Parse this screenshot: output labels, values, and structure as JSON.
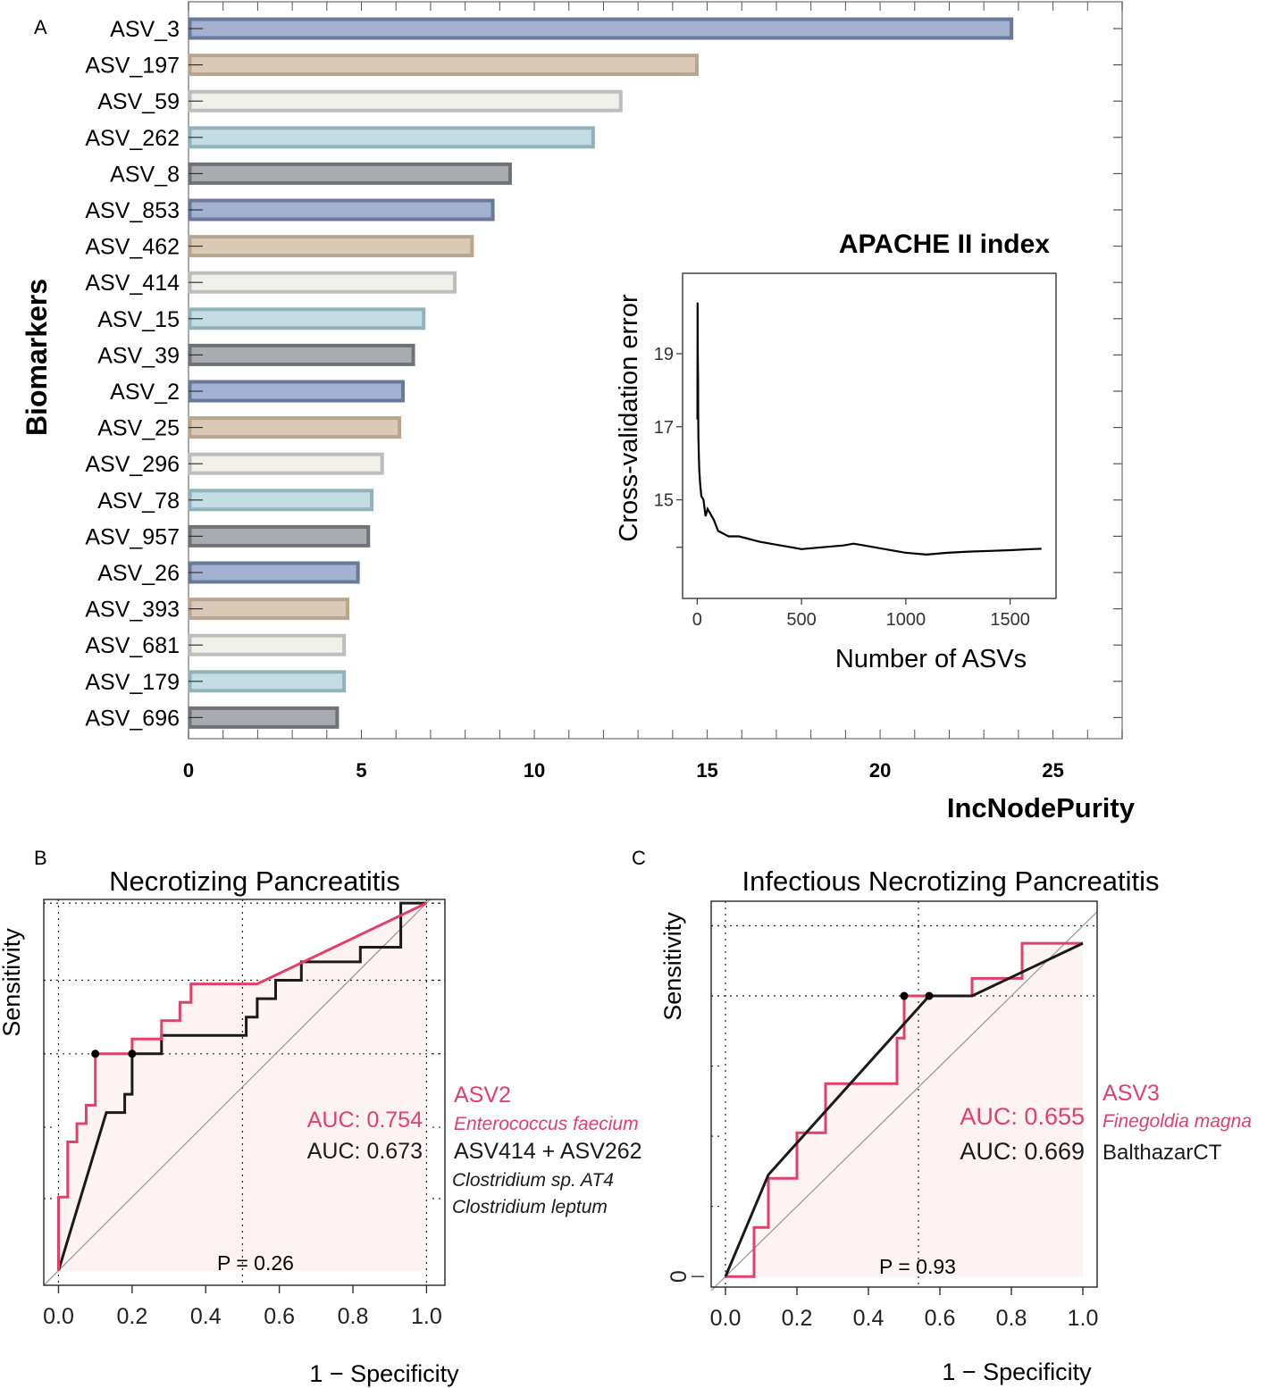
{
  "panel_labels": {
    "a": "A",
    "b": "B",
    "c": "C"
  },
  "colors": {
    "blue": "#a3b2d1",
    "blue_edge": "#6a789a",
    "tan": "#d9cab7",
    "tan_edge": "#b8a58d",
    "white": "#f1efea",
    "white_edge": "#bdbdbd",
    "cyan": "#c4dde2",
    "cyan_edge": "#92b2ba",
    "gray": "#a9abb1",
    "gray_edge": "#6f7277",
    "roc_red": "#e2406b",
    "roc_black": "#1a1a1a",
    "roc_fill": "#fdf3f2",
    "diag": "#9a9a9a"
  },
  "chart_data": [
    {
      "id": "importance",
      "type": "bar",
      "orientation": "horizontal",
      "xlabel": "IncNodePurity",
      "ylabel": "Biomarkers",
      "xlim": [
        0,
        27
      ],
      "xticks": [
        0,
        5,
        10,
        15,
        20,
        25
      ],
      "xtick_labels": [
        "0",
        "5",
        "10",
        "15",
        "20",
        "25"
      ],
      "categories": [
        "ASV_3",
        "ASV_197",
        "ASV_59",
        "ASV_262",
        "ASV_8",
        "ASV_853",
        "ASV_462",
        "ASV_414",
        "ASV_15",
        "ASV_39",
        "ASV_2",
        "ASV_25",
        "ASV_296",
        "ASV_78",
        "ASV_957",
        "ASV_26",
        "ASV_393",
        "ASV_681",
        "ASV_179",
        "ASV_696"
      ],
      "values": [
        23.8,
        14.7,
        12.5,
        11.7,
        9.3,
        8.8,
        8.2,
        7.7,
        6.8,
        6.5,
        6.2,
        6.1,
        5.6,
        5.3,
        5.2,
        4.9,
        4.6,
        4.5,
        4.5,
        4.3
      ],
      "color_cycle": [
        "blue",
        "tan",
        "white",
        "cyan",
        "gray"
      ]
    },
    {
      "id": "cv",
      "type": "line",
      "title": "APACHE II index",
      "xlabel": "Number of ASVs",
      "ylabel": "Cross-validation error",
      "xlim": [
        -70,
        1720
      ],
      "ylim": [
        12.3,
        21.2
      ],
      "xticks": [
        0,
        500,
        1000,
        1500
      ],
      "xtick_labels": [
        "0",
        "500",
        "1000",
        "1500"
      ],
      "yticks": [
        15,
        17,
        19
      ],
      "ytick_labels": [
        "15",
        "17",
        "19"
      ],
      "yticks_unlabeled": [
        13.7
      ],
      "x": [
        1,
        2,
        3,
        4,
        5,
        6,
        8,
        10,
        15,
        20,
        30,
        40,
        50,
        60,
        80,
        100,
        150,
        200,
        300,
        400,
        500,
        600,
        700,
        750,
        800,
        900,
        1000,
        1100,
        1200,
        1300,
        1400,
        1500,
        1600,
        1650
      ],
      "y": [
        17.2,
        20.4,
        19.0,
        18.4,
        17.3,
        16.7,
        16.2,
        15.8,
        15.4,
        15.1,
        15.0,
        14.55,
        14.75,
        14.65,
        14.45,
        14.15,
        14.0,
        14.0,
        13.85,
        13.75,
        13.65,
        13.7,
        13.75,
        13.8,
        13.75,
        13.65,
        13.55,
        13.5,
        13.55,
        13.58,
        13.6,
        13.62,
        13.65,
        13.66
      ]
    },
    {
      "id": "rocB",
      "type": "line",
      "title": "Necrotizing Pancreatitis",
      "xlabel": "1 − Specificity",
      "ylabel": "Sensitivity",
      "xlim": [
        -0.04,
        1.05
      ],
      "ylim": [
        -0.04,
        1.01
      ],
      "xticks": [
        0,
        0.2,
        0.4,
        0.6,
        0.8,
        1.0
      ],
      "xtick_labels": [
        "0.0",
        "0.2",
        "0.4",
        "0.6",
        "0.8",
        "1.0"
      ],
      "right_ticks": [
        0.196,
        0.39,
        0.59,
        0.79,
        1.0
      ],
      "grid_y": [
        0.59,
        0.79,
        1.0
      ],
      "grid_x": [
        0,
        0.5,
        1.0
      ],
      "series": [
        {
          "name": "ASV2",
          "color": "roc_red",
          "auc_label": "AUC: 0.754",
          "taxon": "Enterococcus faecium",
          "x": [
            0,
            0,
            0.025,
            0.025,
            0.05,
            0.05,
            0.075,
            0.075,
            0.1,
            0.1,
            0.2,
            0.2,
            0.28,
            0.28,
            0.33,
            0.33,
            0.36,
            0.36,
            0.54,
            1.0
          ],
          "y": [
            0,
            0.2,
            0.2,
            0.35,
            0.35,
            0.4,
            0.4,
            0.45,
            0.45,
            0.59,
            0.59,
            0.63,
            0.63,
            0.68,
            0.68,
            0.73,
            0.73,
            0.78,
            0.78,
            1.0
          ],
          "marker": [
            0.1,
            0.59
          ]
        },
        {
          "name": "ASV414 + ASV262",
          "color": "roc_black",
          "auc_label": "AUC: 0.673",
          "taxon": [
            "Clostridium sp. AT4",
            "Clostridium leptum"
          ],
          "x": [
            0,
            0.13,
            0.18,
            0.18,
            0.2,
            0.2,
            0.28,
            0.28,
            0.51,
            0.51,
            0.54,
            0.54,
            0.59,
            0.59,
            0.66,
            0.66,
            0.82,
            0.82,
            0.93,
            0.93,
            1.0
          ],
          "y": [
            0,
            0.43,
            0.43,
            0.48,
            0.48,
            0.59,
            0.59,
            0.64,
            0.64,
            0.69,
            0.69,
            0.74,
            0.74,
            0.79,
            0.79,
            0.84,
            0.84,
            0.88,
            0.88,
            1.0,
            1.0
          ],
          "marker": [
            0.2,
            0.59
          ]
        }
      ],
      "p_value": "P = 0.26"
    },
    {
      "id": "rocC",
      "type": "line",
      "title": "Infectious Necrotizing Pancreatitis",
      "xlabel": "1 − Specificity",
      "ylabel": "Sensitivity",
      "xlim": [
        -0.04,
        1.04
      ],
      "ylim": [
        -0.03,
        1.07
      ],
      "xticks": [
        0,
        0.2,
        0.4,
        0.6,
        0.8,
        1.0
      ],
      "xtick_labels": [
        "0.0",
        "0.2",
        "0.4",
        "0.6",
        "0.8",
        "1.0"
      ],
      "yticks_left": [
        0
      ],
      "ytick_left_labels": [
        "0"
      ],
      "left_dotted_ticks": [
        0.2,
        0.4,
        0.6,
        0.8,
        1.0
      ],
      "grid_y": [
        0.8,
        1.0
      ],
      "grid_x": [
        0,
        0.54
      ],
      "series": [
        {
          "name": "ASV3",
          "color": "roc_red",
          "auc_label": "AUC: 0.655",
          "taxon": "Finegoldia magna",
          "x": [
            0,
            0.08,
            0.08,
            0.12,
            0.12,
            0.2,
            0.2,
            0.28,
            0.28,
            0.48,
            0.48,
            0.5,
            0.5,
            0.69,
            0.69,
            0.83,
            0.83,
            1.0
          ],
          "y": [
            0,
            0,
            0.14,
            0.14,
            0.28,
            0.28,
            0.41,
            0.41,
            0.55,
            0.55,
            0.68,
            0.68,
            0.8,
            0.8,
            0.85,
            0.85,
            0.95,
            0.95
          ],
          "marker": [
            0.5,
            0.8
          ]
        },
        {
          "name": "BalthazarCT",
          "color": "roc_black",
          "auc_label": "AUC: 0.669",
          "taxon": "",
          "x": [
            0,
            0.12,
            0.57,
            0.69,
            1.0
          ],
          "y": [
            0,
            0.29,
            0.8,
            0.8,
            0.95
          ],
          "marker": [
            0.57,
            0.8
          ]
        }
      ],
      "p_value": "P  = 0.93"
    }
  ]
}
